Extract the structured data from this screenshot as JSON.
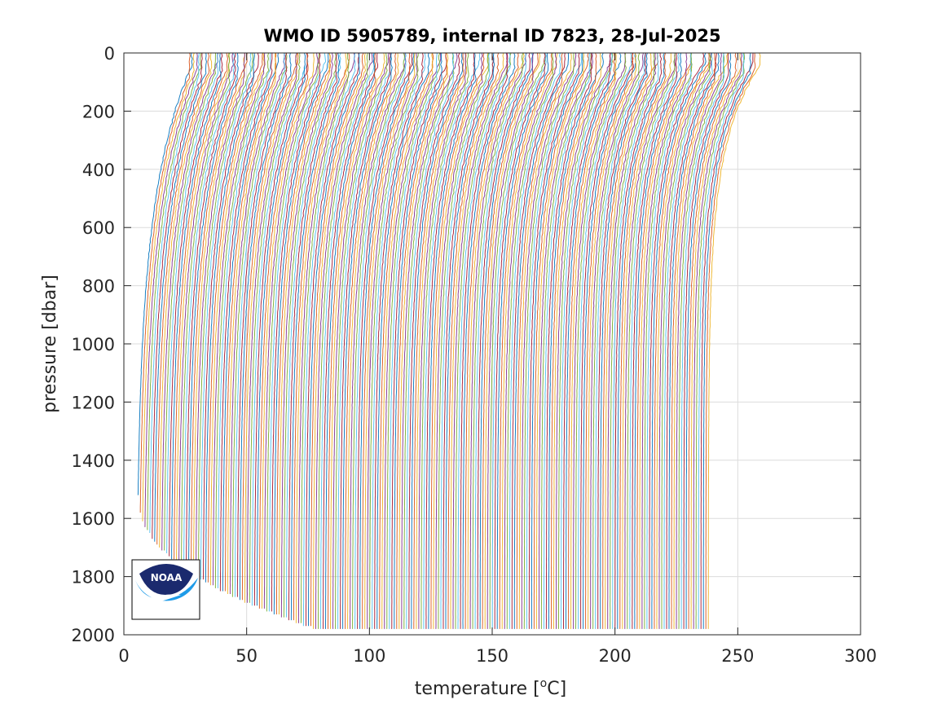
{
  "chart_data": {
    "type": "line",
    "title": "WMO ID 5905789, internal ID 7823, 28-Jul-2025",
    "xlabel_prefix": "temperature [",
    "xlabel_sup": "o",
    "xlabel_suffix": "C]",
    "ylabel": "pressure [dbar]",
    "xlim": [
      0,
      300
    ],
    "ylim": [
      0,
      2000
    ],
    "y_reversed": true,
    "grid": true,
    "xticks": [
      "0",
      "50",
      "100",
      "150",
      "200",
      "250",
      "300"
    ],
    "yticks": [
      "0",
      "200",
      "400",
      "600",
      "800",
      "1000",
      "1200",
      "1400",
      "1600",
      "1800",
      "2000"
    ],
    "profile_count": 234,
    "profile_offset_step": 1,
    "first_profile_deep_temperature": 5,
    "last_profile_deep_temperature": 238,
    "surface_temperature_above_deep": 25,
    "max_pressure_range": [
      1520,
      1985
    ],
    "series_colors": [
      "#0072BD",
      "#D95319",
      "#EDB120",
      "#7E2F8E",
      "#77AC30",
      "#4DBEEE",
      "#A2142F"
    ]
  },
  "logo": {
    "text": "NOAA",
    "colors": {
      "top": "#1b2a6e",
      "bottom": "#1e9be8",
      "frame": "#000000"
    }
  }
}
